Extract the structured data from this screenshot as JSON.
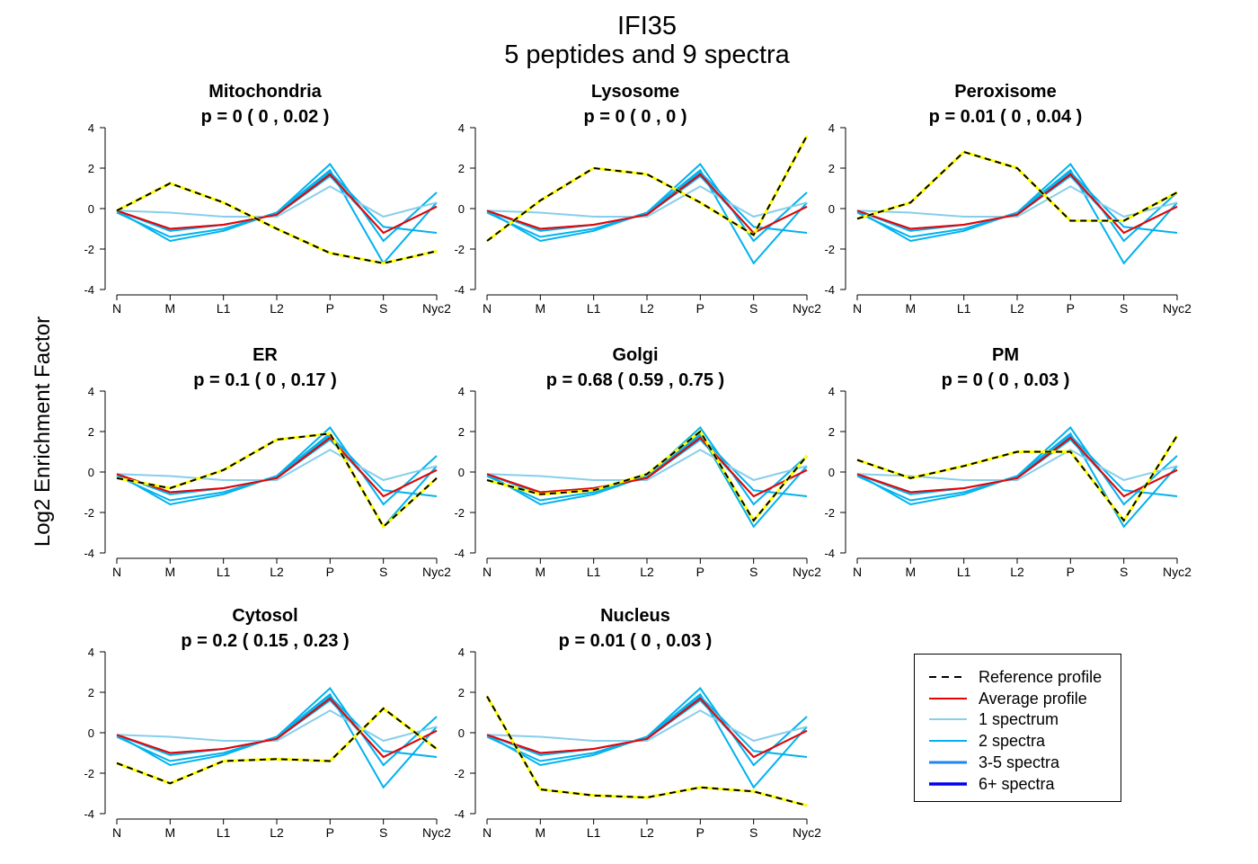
{
  "title": {
    "line1": "IFI35",
    "line2": "5  peptides and  9  spectra"
  },
  "ylabel": "Log2 Enrichment Factor",
  "legend": {
    "items": [
      {
        "label": "Reference profile",
        "color": "#000000",
        "style": "dashed"
      },
      {
        "label": "Average profile",
        "color": "#ee0000",
        "style": "solid"
      },
      {
        "label": "1 spectrum",
        "color": "#87ceeb",
        "style": "solid"
      },
      {
        "label": "2 spectra",
        "color": "#00b2ee",
        "style": "solid"
      },
      {
        "label": "3-5 spectra",
        "color": "#1c86ee",
        "style": "solid"
      },
      {
        "label": "6+ spectra",
        "color": "#0000ee",
        "style": "solid"
      }
    ]
  },
  "chart_data": {
    "type": "line",
    "categories": [
      "N",
      "M",
      "L1",
      "L2",
      "P",
      "S",
      "Nyc2"
    ],
    "ylim": [
      -4,
      4
    ],
    "yticks": [
      -4,
      -2,
      0,
      2,
      4
    ],
    "grid": false,
    "legend_position": "bottom-right",
    "colors": {
      "reference_dash": "#000000",
      "reference_under": "#ffff00",
      "average": "#ee0000",
      "one_spectrum": "#87ceeb",
      "two_spectra": "#00b2ee"
    },
    "peptides": [
      {
        "values": [
          -0.1,
          -1.0,
          -0.8,
          -0.3,
          1.6,
          -1.2,
          0.1
        ],
        "spectra": 2
      },
      {
        "values": [
          -0.1,
          -1.6,
          -1.1,
          -0.2,
          2.2,
          -1.6,
          0.8
        ],
        "spectra": 2
      },
      {
        "values": [
          -0.2,
          -1.4,
          -1.0,
          -0.2,
          1.9,
          -2.7,
          0.3
        ],
        "spectra": 2
      },
      {
        "values": [
          -0.1,
          -1.1,
          -0.8,
          -0.3,
          1.8,
          -0.9,
          -1.2
        ],
        "spectra": 2
      },
      {
        "values": [
          -0.1,
          -0.2,
          -0.4,
          -0.4,
          1.1,
          -0.4,
          0.3
        ],
        "spectra": 1
      }
    ],
    "average": [
      -0.1,
      -1.0,
      -0.8,
      -0.3,
      1.7,
      -1.2,
      0.1
    ],
    "panels": [
      {
        "name": "Mitochondria",
        "p": "p =  0  ( 0 ,  0.02 )",
        "reference": [
          -0.1,
          1.25,
          0.3,
          -1.0,
          -2.2,
          -2.7,
          -2.1
        ]
      },
      {
        "name": "Lysosome",
        "p": "p =  0  ( 0 ,  0 )",
        "reference": [
          -1.6,
          0.4,
          2.0,
          1.7,
          0.3,
          -1.3,
          3.6
        ]
      },
      {
        "name": "Peroxisome",
        "p": "p =  0.01  ( 0 ,  0.04 )",
        "reference": [
          -0.5,
          0.3,
          2.8,
          2.0,
          -0.6,
          -0.6,
          0.8
        ]
      },
      {
        "name": "ER",
        "p": "p =  0.1  ( 0 ,  0.17 )",
        "reference": [
          -0.3,
          -0.8,
          0.1,
          1.6,
          1.9,
          -2.7,
          -0.3
        ]
      },
      {
        "name": "Golgi",
        "p": "p =  0.68  ( 0.59 ,  0.75 )",
        "reference": [
          -0.4,
          -1.1,
          -0.9,
          -0.1,
          2.0,
          -2.4,
          0.8
        ]
      },
      {
        "name": "PM",
        "p": "p =  0  ( 0 ,  0.03 )",
        "reference": [
          0.6,
          -0.3,
          0.3,
          1.0,
          1.0,
          -2.4,
          1.8
        ]
      },
      {
        "name": "Cytosol",
        "p": "p =  0.2  ( 0.15 ,  0.23 )",
        "reference": [
          -1.5,
          -2.5,
          -1.4,
          -1.3,
          -1.4,
          1.2,
          -0.8
        ]
      },
      {
        "name": "Nucleus",
        "p": "p =  0.01  ( 0 ,  0.03 )",
        "reference": [
          1.8,
          -2.8,
          -3.1,
          -3.2,
          -2.7,
          -2.9,
          -3.6
        ]
      }
    ]
  }
}
